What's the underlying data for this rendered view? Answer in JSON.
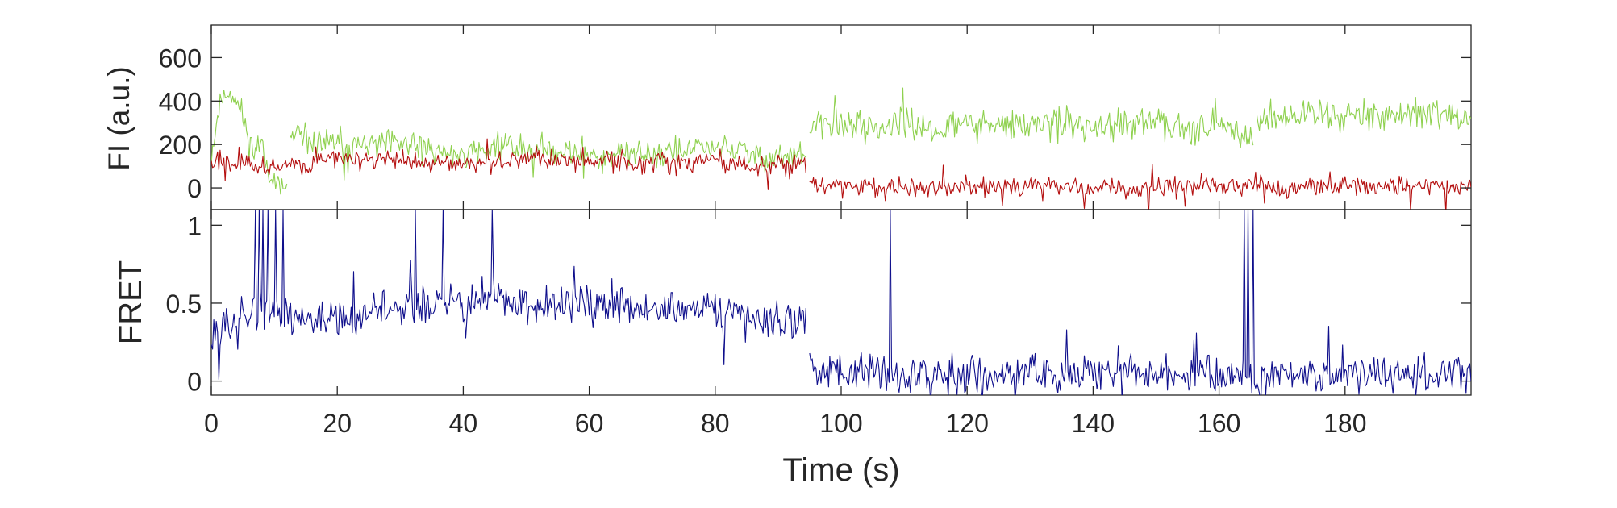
{
  "chart_data": [
    {
      "type": "line",
      "title": "",
      "xlabel": "",
      "ylabel": "FI (a.u.)",
      "xlim": [
        0,
        200
      ],
      "ylim": [
        -100,
        750
      ],
      "yticks": [
        0,
        200,
        400,
        600
      ],
      "grid": false,
      "series": [
        {
          "color": "#8fd14f",
          "segments": [
            {
              "x": [
                0,
                1.5,
                3,
                5,
                6.5,
                8,
                9,
                10,
                11,
                12
              ],
              "y": [
                150,
                410,
                450,
                330,
                170,
                210,
                100,
                40,
                -30,
                0
              ]
            },
            {
              "x": [
                12.5,
                15,
                20,
                25,
                30,
                35,
                40,
                45,
                50,
                55,
                60,
                65,
                70,
                75,
                80,
                85,
                90,
                94.5
              ],
              "y": [
                240,
                210,
                200,
                190,
                200,
                170,
                150,
                200,
                180,
                170,
                160,
                150,
                160,
                170,
                190,
                160,
                140,
                150
              ]
            },
            {
              "x": [
                95,
                96,
                100,
                105,
                110,
                115,
                120,
                125,
                130,
                135,
                140,
                145,
                150,
                155,
                160,
                164,
                165.5
              ],
              "y": [
                260,
                280,
                300,
                280,
                290,
                270,
                300,
                280,
                290,
                300,
                270,
                280,
                300,
                290,
                280,
                260,
                220
              ]
            },
            {
              "x": [
                166,
                168,
                170,
                175,
                180,
                185,
                190,
                195,
                200
              ],
              "y": [
                310,
                330,
                320,
                350,
                340,
                330,
                350,
                320,
                330
              ]
            }
          ],
          "noise": 60
        },
        {
          "color": "#b40e0e",
          "segments": [
            {
              "x": [
                0,
                5,
                10,
                15,
                20,
                25,
                30,
                35,
                40,
                45,
                50,
                55,
                60,
                65,
                70,
                75,
                80,
                85,
                90,
                94.5
              ],
              "y": [
                120,
                110,
                100,
                110,
                130,
                140,
                120,
                110,
                115,
                125,
                140,
                130,
                120,
                115,
                110,
                120,
                130,
                100,
                100,
                110
              ]
            },
            {
              "x": [
                95,
                96,
                100,
                110,
                120,
                130,
                140,
                150,
                160,
                170,
                180,
                190,
                200
              ],
              "y": [
                20,
                10,
                5,
                0,
                5,
                10,
                0,
                5,
                10,
                0,
                5,
                10,
                0
              ]
            }
          ],
          "noise": 40
        }
      ]
    },
    {
      "type": "line",
      "title": "",
      "xlabel": "Time (s)",
      "ylabel": "FRET",
      "xlim": [
        0,
        200
      ],
      "ylim": [
        -0.09,
        1.1
      ],
      "xticks": [
        0,
        20,
        40,
        60,
        80,
        100,
        120,
        140,
        160,
        180
      ],
      "yticks": [
        0,
        0.5,
        1
      ],
      "grid": false,
      "series": [
        {
          "color": "#0f0f8c",
          "segments": [
            {
              "x": [
                0,
                5,
                10,
                15,
                20,
                25,
                30,
                35,
                40,
                45,
                50,
                55,
                60,
                65,
                70,
                75,
                80,
                85,
                90,
                94.5
              ],
              "y": [
                0.35,
                0.4,
                0.42,
                0.38,
                0.35,
                0.45,
                0.5,
                0.48,
                0.5,
                0.52,
                0.5,
                0.48,
                0.5,
                0.45,
                0.47,
                0.45,
                0.45,
                0.4,
                0.4,
                0.4
              ]
            },
            {
              "x": [
                95,
                100,
                110,
                120,
                130,
                140,
                150,
                160,
                170,
                180,
                190,
                200
              ],
              "y": [
                0.08,
                0.06,
                0.04,
                0.03,
                0.05,
                0.04,
                0.05,
                0.05,
                0.04,
                0.05,
                0.04,
                0.05
              ]
            }
          ],
          "noise": 0.11,
          "spikes": [
            {
              "x": [
                7,
                7.6,
                8.3,
                9.1,
                10.2,
                11.4
              ],
              "y": 1.1
            },
            {
              "x": [
                32.4,
                36.8,
                44.6,
                107.9
              ],
              "y": 1.1
            },
            {
              "x": [
                164,
                164.6,
                165.3
              ],
              "y": 1.1
            }
          ]
        }
      ]
    }
  ]
}
